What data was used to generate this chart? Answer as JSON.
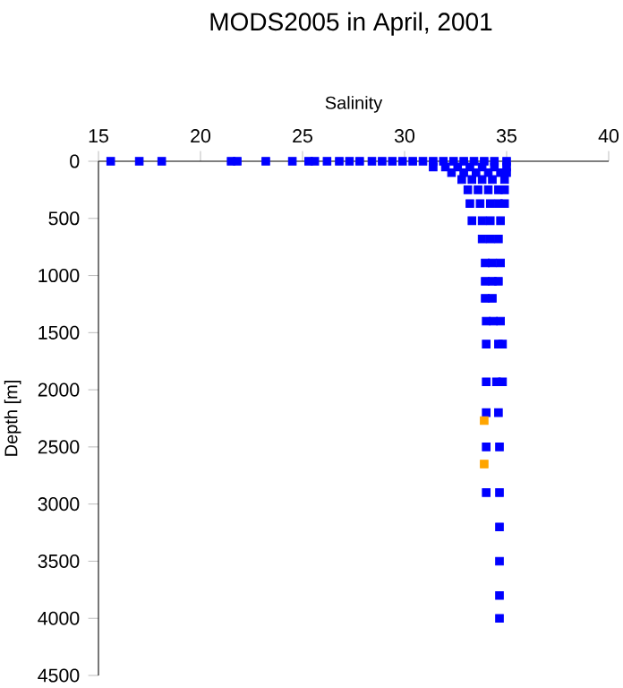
{
  "chart_data": {
    "type": "scatter",
    "title": "MODS2005 in April, 2001",
    "xlabel": "Salinity",
    "ylabel": "Depth [m]",
    "xlim": [
      15,
      40
    ],
    "xticks": [
      15,
      20,
      25,
      30,
      35,
      40
    ],
    "ylim": [
      4500,
      0
    ],
    "yticks": [
      0,
      500,
      1000,
      1500,
      2000,
      2500,
      3000,
      3500,
      4000,
      4500
    ],
    "marker": "square",
    "series": [
      {
        "color": "#0000ff",
        "x": [
          15.6,
          17.0,
          18.1,
          21.5,
          21.8,
          23.2,
          24.5,
          25.3,
          25.6,
          26.2,
          26.8,
          27.3,
          27.8,
          28.4,
          28.9,
          29.4,
          29.9,
          30.4,
          30.9,
          31.4,
          31.9,
          32.4,
          32.9,
          33.4,
          33.9,
          34.4,
          35.0,
          31.4,
          32.0,
          32.6,
          33.2,
          33.8,
          34.4,
          35.0,
          32.3,
          32.9,
          33.5,
          34.1,
          34.7,
          35.0,
          32.8,
          33.3,
          33.8,
          34.3,
          34.9,
          33.1,
          33.6,
          34.1,
          34.6,
          34.9,
          33.2,
          33.7,
          34.2,
          34.6,
          34.9,
          33.3,
          33.8,
          34.2,
          34.7,
          33.8,
          34.2,
          34.6,
          33.95,
          34.3,
          34.7,
          33.95,
          34.3,
          34.6,
          33.95,
          34.3,
          34.0,
          34.35,
          34.7,
          34.0,
          34.6,
          34.8,
          34.0,
          34.5,
          34.8,
          34.0,
          34.6,
          34.0,
          34.65,
          34.0,
          34.65,
          34.65,
          34.65,
          34.65,
          34.65
        ],
        "values": [
          0,
          0,
          0,
          0,
          0,
          0,
          0,
          0,
          0,
          0,
          0,
          0,
          0,
          0,
          0,
          0,
          0,
          0,
          0,
          0,
          0,
          0,
          0,
          0,
          0,
          0,
          0,
          50,
          50,
          50,
          50,
          50,
          50,
          50,
          100,
          100,
          100,
          100,
          100,
          100,
          160,
          160,
          160,
          160,
          160,
          250,
          250,
          250,
          250,
          250,
          370,
          370,
          370,
          370,
          370,
          520,
          520,
          520,
          520,
          680,
          680,
          680,
          890,
          890,
          890,
          1050,
          1050,
          1050,
          1200,
          1200,
          1400,
          1400,
          1400,
          1600,
          1600,
          1600,
          1930,
          1930,
          1930,
          2200,
          2200,
          2500,
          2500,
          2900,
          2900,
          3200,
          3500,
          3800,
          4000
        ]
      },
      {
        "color": "#ffa500",
        "x": [
          33.9,
          33.9
        ],
        "values": [
          2270,
          2650
        ]
      }
    ]
  }
}
